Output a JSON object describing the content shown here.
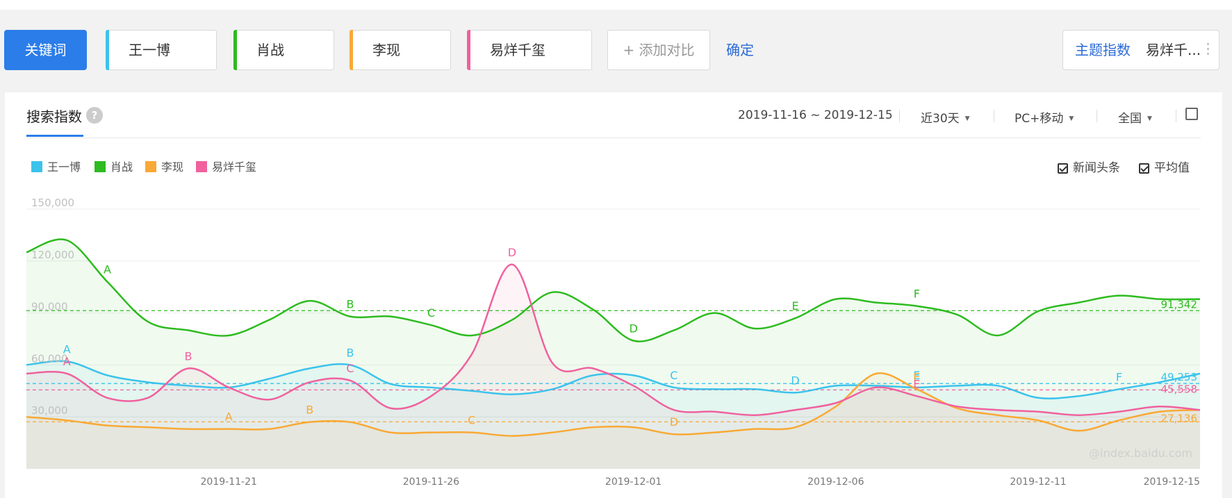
{
  "compare_bar": {
    "keyword_button": "关键词",
    "keywords": [
      {
        "label": "王一博",
        "color": "#3bc3ec"
      },
      {
        "label": "肖战",
        "color": "#2dbb1f"
      },
      {
        "label": "李现",
        "color": "#f9a935"
      },
      {
        "label": "易烊千玺",
        "color": "#f0619e"
      }
    ],
    "add_compare": "+ 添加对比",
    "confirm": "确定",
    "theme_label": "主题指数",
    "theme_value": "易烊千..."
  },
  "panel": {
    "title": "搜索指数",
    "help": "?",
    "date_range": "2019-11-16 ~ 2019-12-15",
    "period": "近30天",
    "device": "PC+移动",
    "region": "全国",
    "news_label": "新闻头条",
    "avg_label": "平均值",
    "watermark": "@index.baidu.com"
  },
  "chart_data": {
    "type": "line",
    "ylim": [
      0,
      150000
    ],
    "yticks": [
      30000,
      60000,
      90000,
      120000,
      150000
    ],
    "ytick_labels": [
      "30,000",
      "60,000",
      "90,000",
      "120,000",
      "150,000"
    ],
    "x": [
      "2019-11-16",
      "2019-11-17",
      "2019-11-18",
      "2019-11-19",
      "2019-11-20",
      "2019-11-21",
      "2019-11-22",
      "2019-11-23",
      "2019-11-24",
      "2019-11-25",
      "2019-11-26",
      "2019-11-27",
      "2019-11-28",
      "2019-11-29",
      "2019-11-30",
      "2019-12-01",
      "2019-12-02",
      "2019-12-03",
      "2019-12-04",
      "2019-12-05",
      "2019-12-06",
      "2019-12-07",
      "2019-12-08",
      "2019-12-09",
      "2019-12-10",
      "2019-12-11",
      "2019-12-12",
      "2019-12-13",
      "2019-12-14",
      "2019-12-15"
    ],
    "xtick_labels": [
      "2019-11-21",
      "2019-11-26",
      "2019-12-01",
      "2019-12-06",
      "2019-12-11",
      "2019-12-15"
    ],
    "grid": true,
    "series": [
      {
        "name": "肖战",
        "color": "#2dbb1f",
        "values": [
          125000,
          132000,
          108000,
          85000,
          80000,
          77000,
          86000,
          97000,
          88000,
          88000,
          83000,
          77000,
          86000,
          102000,
          92000,
          74000,
          80000,
          90000,
          81000,
          87000,
          98000,
          96000,
          94000,
          89000,
          77000,
          91000,
          96000,
          100000,
          98000,
          98000
        ],
        "average": 91342,
        "average_label": "91,342",
        "news": [
          {
            "label": "A",
            "x": "2019-11-18"
          },
          {
            "label": "B",
            "x": "2019-11-24"
          },
          {
            "label": "C",
            "x": "2019-11-26"
          },
          {
            "label": "D",
            "x": "2019-12-01"
          },
          {
            "label": "E",
            "x": "2019-12-05"
          },
          {
            "label": "F",
            "x": "2019-12-08"
          }
        ]
      },
      {
        "name": "王一博",
        "color": "#3bc3ec",
        "values": [
          60000,
          62000,
          54000,
          50000,
          48000,
          47000,
          52000,
          58000,
          60000,
          49000,
          47000,
          45000,
          43000,
          46000,
          54000,
          54000,
          47000,
          46000,
          46000,
          44000,
          48000,
          48000,
          47000,
          48000,
          48000,
          41000,
          42000,
          46000,
          50000,
          55000
        ],
        "average": 49253,
        "average_label": "49,253",
        "news": [
          {
            "label": "A",
            "x": "2019-11-17"
          },
          {
            "label": "B",
            "x": "2019-11-24"
          },
          {
            "label": "C",
            "x": "2019-12-02"
          },
          {
            "label": "D",
            "x": "2019-12-05"
          },
          {
            "label": "E",
            "x": "2019-12-08"
          },
          {
            "label": "F",
            "x": "2019-12-13"
          }
        ]
      },
      {
        "name": "李现",
        "color": "#f9a935",
        "values": [
          30000,
          28000,
          25000,
          24000,
          23000,
          23000,
          23000,
          27000,
          27000,
          21000,
          21000,
          21000,
          19000,
          21000,
          24000,
          24000,
          20000,
          21000,
          23000,
          24000,
          36000,
          55000,
          46000,
          35000,
          31000,
          28000,
          22000,
          28000,
          33000,
          34000
        ],
        "average": 27136,
        "average_label": "27,136",
        "news": [
          {
            "label": "A",
            "x": "2019-11-21"
          },
          {
            "label": "B",
            "x": "2019-11-23"
          },
          {
            "label": "C",
            "x": "2019-11-27"
          },
          {
            "label": "D",
            "x": "2019-12-02"
          },
          {
            "label": "E",
            "x": "2019-12-08"
          }
        ]
      },
      {
        "name": "易烊千玺",
        "color": "#f0619e",
        "values": [
          55000,
          55000,
          41000,
          41000,
          58000,
          47000,
          40000,
          50000,
          51000,
          35000,
          42000,
          66000,
          118000,
          61000,
          58000,
          48000,
          34000,
          33000,
          31000,
          34000,
          38000,
          47000,
          42000,
          36000,
          34000,
          33000,
          31000,
          33000,
          36000,
          34000
        ],
        "average": 45558,
        "average_label": "45,558",
        "news": [
          {
            "label": "A",
            "x": "2019-11-17"
          },
          {
            "label": "B",
            "x": "2019-11-20"
          },
          {
            "label": "C",
            "x": "2019-11-24"
          },
          {
            "label": "D",
            "x": "2019-11-28"
          },
          {
            "label": "E",
            "x": "2019-12-08"
          }
        ]
      }
    ]
  }
}
